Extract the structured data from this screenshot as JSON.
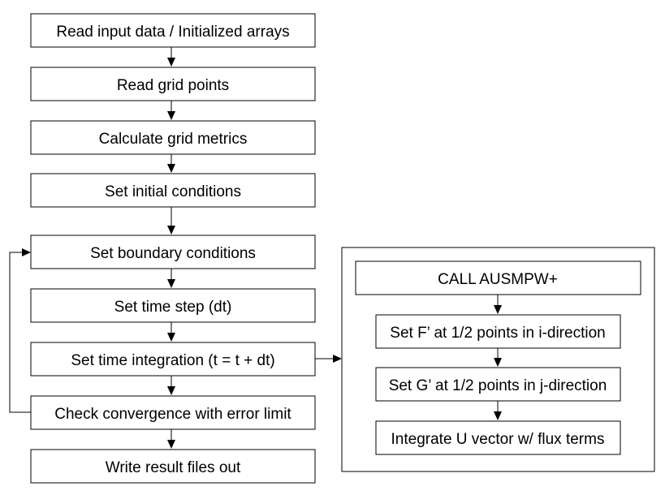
{
  "main_flow": {
    "steps": [
      {
        "label": "Read input data / Initialized arrays"
      },
      {
        "label": "Read grid points"
      },
      {
        "label": "Calculate grid metrics"
      },
      {
        "label": "Set initial conditions"
      },
      {
        "label": "Set boundary conditions"
      },
      {
        "label": "Set time step (dt)"
      },
      {
        "label": "Set time integration (t = t + dt)"
      },
      {
        "label": "Check convergence with error limit"
      },
      {
        "label": "Write result files out"
      }
    ]
  },
  "sub_flow": {
    "steps": [
      {
        "label": "CALL AUSMPW+"
      },
      {
        "label": "Set F’ at 1/2 points in i-direction"
      },
      {
        "label": "Set G’ at 1/2 points in j-direction"
      },
      {
        "label": "Integrate U vector w/ flux terms"
      }
    ]
  }
}
